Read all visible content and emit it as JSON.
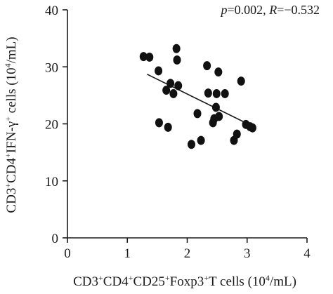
{
  "chart_data": {
    "type": "scatter",
    "title": "",
    "xlabel": {
      "parts": [
        {
          "t": "CD3",
          "sup": false
        },
        {
          "t": "+",
          "sup": true
        },
        {
          "t": "CD4",
          "sup": false
        },
        {
          "t": "+",
          "sup": true
        },
        {
          "t": "CD25",
          "sup": false
        },
        {
          "t": "+",
          "sup": true
        },
        {
          "t": "Foxp3",
          "sup": false
        },
        {
          "t": "+",
          "sup": true
        },
        {
          "t": "T cells (10",
          "sup": false
        },
        {
          "t": "4",
          "sup": true
        },
        {
          "t": "/mL)",
          "sup": false
        }
      ]
    },
    "ylabel": {
      "parts": [
        {
          "t": "CD3",
          "sup": false
        },
        {
          "t": "+",
          "sup": true
        },
        {
          "t": "CD4",
          "sup": false
        },
        {
          "t": "+",
          "sup": true
        },
        {
          "t": "IFN-γ",
          "sup": false
        },
        {
          "t": "+",
          "sup": true
        },
        {
          "t": " cells (10",
          "sup": false
        },
        {
          "t": "4",
          "sup": true
        },
        {
          "t": "/mL)",
          "sup": false
        }
      ]
    },
    "annotation": {
      "p_symbol": "p",
      "p_text": "=0.002, ",
      "r_symbol": "R",
      "r_text": "=−0.532"
    },
    "xlim": [
      0,
      4
    ],
    "ylim": [
      0,
      40
    ],
    "xticks": [
      "0",
      "1",
      "2",
      "3",
      "4"
    ],
    "yticks": [
      "0",
      "10",
      "20",
      "30",
      "40"
    ],
    "grid": false,
    "marker_color": "#111111",
    "points": [
      {
        "x": 1.27,
        "y": 31.8
      },
      {
        "x": 1.37,
        "y": 31.7
      },
      {
        "x": 1.52,
        "y": 29.3
      },
      {
        "x": 1.53,
        "y": 20.2
      },
      {
        "x": 1.65,
        "y": 25.9
      },
      {
        "x": 1.68,
        "y": 19.4
      },
      {
        "x": 1.72,
        "y": 27.1
      },
      {
        "x": 1.77,
        "y": 25.3
      },
      {
        "x": 1.82,
        "y": 33.2
      },
      {
        "x": 1.83,
        "y": 31.2
      },
      {
        "x": 1.85,
        "y": 26.7
      },
      {
        "x": 2.07,
        "y": 16.4
      },
      {
        "x": 2.17,
        "y": 21.8
      },
      {
        "x": 2.23,
        "y": 17.1
      },
      {
        "x": 2.33,
        "y": 30.2
      },
      {
        "x": 2.35,
        "y": 25.4
      },
      {
        "x": 2.43,
        "y": 20.2
      },
      {
        "x": 2.45,
        "y": 20.9
      },
      {
        "x": 2.48,
        "y": 22.9
      },
      {
        "x": 2.49,
        "y": 25.3
      },
      {
        "x": 2.52,
        "y": 29.1
      },
      {
        "x": 2.53,
        "y": 21.3
      },
      {
        "x": 2.63,
        "y": 25.3
      },
      {
        "x": 2.78,
        "y": 17.1
      },
      {
        "x": 2.83,
        "y": 18.2
      },
      {
        "x": 2.9,
        "y": 27.5
      },
      {
        "x": 2.98,
        "y": 19.9
      },
      {
        "x": 3.05,
        "y": 19.5
      },
      {
        "x": 3.09,
        "y": 19.3
      }
    ],
    "trendline": {
      "x": [
        1.33,
        3.05
      ],
      "y": [
        28.7,
        19.8
      ]
    }
  }
}
